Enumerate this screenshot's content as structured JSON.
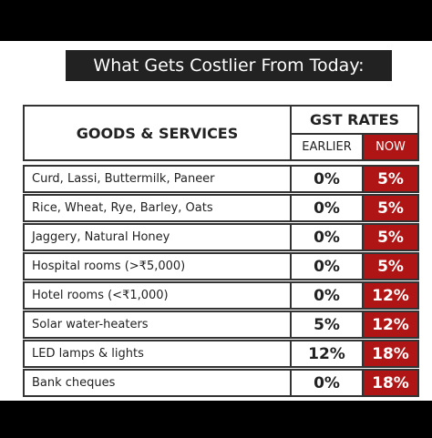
{
  "header": {
    "title": "What Gets Costlier From Today:"
  },
  "table": {
    "columns": {
      "goods": "GOODS & SERVICES",
      "group": "GST RATES",
      "earlier": "EARLIER",
      "now": "NOW"
    },
    "rows": [
      [
        "Curd, Lassi, Buttermilk, Paneer",
        "0%",
        "5%"
      ],
      [
        "Rice, Wheat, Rye, Barley, Oats",
        "0%",
        "5%"
      ],
      [
        "Jaggery, Natural Honey",
        "0%",
        "5%"
      ],
      [
        "Hospital rooms (>₹5,000)",
        "0%",
        "5%"
      ],
      [
        "Hotel rooms (<₹1,000)",
        "0%",
        "12%"
      ],
      [
        "Solar water-heaters",
        "5%",
        "12%"
      ],
      [
        "LED lamps & lights",
        "12%",
        "18%"
      ],
      [
        "Bank cheques",
        "0%",
        "18%"
      ]
    ]
  }
}
